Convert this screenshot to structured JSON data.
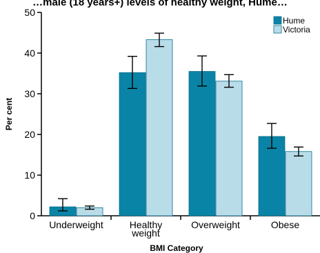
{
  "chart_data": {
    "type": "bar",
    "title": "…male (18 years+) levels of healthy weight, Hume…",
    "xlabel": "BMI Category",
    "ylabel": "Per cent",
    "ylim": [
      0,
      50
    ],
    "yticks": [
      0,
      10,
      20,
      30,
      40,
      50
    ],
    "grid": false,
    "legend_position": "top-right",
    "categories": [
      [
        "Underweight"
      ],
      [
        "Healthy",
        "weight"
      ],
      [
        "Overweight"
      ],
      [
        "Obese"
      ]
    ],
    "series": [
      {
        "name": "Hume",
        "color": "#0a84a6",
        "values": [
          2.2,
          35.2,
          35.5,
          19.5
        ],
        "error_low": [
          1.2,
          31.3,
          31.9,
          16.6
        ],
        "error_high": [
          4.2,
          39.2,
          39.3,
          22.7
        ]
      },
      {
        "name": "Victoria",
        "color": "#b9dce9",
        "values": [
          2.0,
          43.3,
          33.1,
          15.8
        ],
        "error_low": [
          1.6,
          41.6,
          31.6,
          14.7
        ],
        "error_high": [
          2.4,
          44.9,
          34.7,
          16.9
        ]
      }
    ]
  }
}
